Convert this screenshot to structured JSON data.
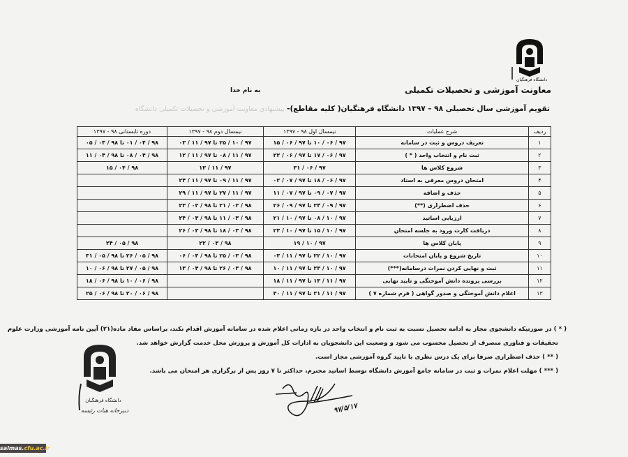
{
  "header": {
    "department": "معاونت آموزشی و تحصیلات تکمیلی",
    "bismillah": "به نام خدا",
    "title": "تقویم آموزشی سال تحصیلی ۹۸ – ۱۳۹۷ دانشگاه فرهنگیان( کلیه مقاطع)- ",
    "title_faint": "پیشنهادی معاونت آموزشی و تحصیلات تکمیلی دانشگاه",
    "logo_text": "دانشگاه فرهنگیان"
  },
  "table": {
    "columns": [
      "ردیف",
      "شرح عملیات",
      "نیمسال اول ۹۸ - ۱۳۹۷",
      "نیمسال دوم ۹۸ - ۱۳۹۷",
      "دوره تابستانی ۹۸ - ۱۳۹۷"
    ],
    "rows": [
      [
        "۱",
        "تعریف دروس و ثبت در سامانه",
        "۹۷ / ۰۶ / ۱۰ تا ۹۷ / ۰۶ / ۱۵",
        "۹۷ / ۱۰ / ۲۵ تا ۹۷ / ۱۱ / ۰۳",
        "۹۸ / ۰۴ / ۰۱ تا ۹۸ / ۰۴ / ۰۵"
      ],
      [
        "۲",
        "ثبت نام و انتخاب واحد ( * )",
        "۹۷ / ۰۶ / ۱۷ تا ۹۷ / ۰۶ / ۲۲",
        "۹۷ / ۱۱ / ۰۸ تا ۹۷ / ۱۱ / ۱۲",
        "۹۸ / ۰۴ / ۰۸ تا ۹۸ / ۰۴ / ۱۱"
      ],
      [
        "۳",
        "شروع کلاس ها",
        "۹۷ / ۰۶ / ۳۱",
        "۹۷ / ۱۱ / ۱۳",
        "۹۸ / ۰۴ / ۱۵"
      ],
      [
        "۴",
        "امتحان دروس معرفی به استاد",
        "۹۷ / ۰۶ / ۱۸ تا ۹۷ / ۰۷ / ۰۲",
        "۹۷ / ۱۱ / ۰۹ تا ۹۷ / ۱۱ / ۲۴",
        ""
      ],
      [
        "۵",
        "حذف و اضافه",
        "۹۷ / ۰۷ / ۰۹ تا ۹۷ / ۰۷ / ۱۱",
        "۹۷ / ۱۱ / ۲۷ تا ۹۷ / ۱۱ / ۲۹",
        ""
      ],
      [
        "۶",
        "حذف اضطراری (**)",
        "۹۷ / ۰۹ / ۲۴ تا ۹۷ / ۰۹ / ۲۶",
        "۹۸ / ۰۲ / ۲۱ تا ۹۸ / ۰۲ / ۲۳",
        ""
      ],
      [
        "۷",
        "ارزیابی اساتید",
        "۹۷ / ۱۰ / ۰۸ تا ۹۷ / ۱۰ / ۲۱",
        "۹۸ / ۰۳ / ۱۱ تا ۹۸ / ۰۳ / ۲۴",
        ""
      ],
      [
        "۸",
        "دریافت کارت ورود به جلسه امتحان",
        "۹۷ / ۱۰ / ۱۵ تا ۹۷ / ۱۰ / ۲۳",
        "۹۸ / ۰۳ / ۱۸ تا ۹۸ / ۰۳ / ۲۶",
        ""
      ],
      [
        "۹",
        "پایان کلاس ها",
        "۹۷ / ۱۰ / ۱۹",
        "۹۸ / ۰۳ / ۲۲",
        "۹۸ / ۰۵ / ۲۴"
      ],
      [
        "۱۰",
        "تاریخ شروع و پایان امتحانات",
        "۹۷ / ۱۰ / ۲۲ تا ۹۷ / ۱۱ / ۰۳",
        "۹۸ / ۰۳ / ۲۵ تا ۹۸ / ۰۴ / ۰۶",
        "۹۸ / ۰۵ / ۲۶ تا ۹۸ / ۰۵ / ۳۱"
      ],
      [
        "۱۱",
        "ثبت و نهایی کردن نمرات درسامانه(***)",
        "۹۷ / ۱۰ / ۲۳ تا ۹۷ / ۱۱ / ۱۰",
        "۹۸ / ۰۳ / ۲۶ تا ۹۸ / ۰۴ / ۱۳",
        "۹۸ / ۰۵ / ۲۷ تا ۹۸ / ۰۶ / ۱۰"
      ],
      [
        "۱۲",
        "بررسی پرونده دانش آموختگی و تایید نهایی",
        "۹۷ / ۱۱ / ۱۳ تا ۹۷ / ۱۱ / ۱۸",
        "",
        "۹۸ / ۰۶ / ۱۰ تا ۹۸ / ۰۶ / ۱۸"
      ],
      [
        "۱۳",
        "اعلام دانش آموختگی و صدور گواهی ( فرم شماره ۷ )",
        "۹۷ / ۱۱ / ۲۱ تا ۹۷ / ۱۱ / ۳۰",
        "",
        "۹۸ / ۰۶ / ۲۰ تا ۹۸ / ۰۶ / ۲۵"
      ]
    ]
  },
  "notes": [
    "( * ) در صورتیکه دانشجوی مجاز به ادامه تحصیل نسبت به ثبت نام و انتخاب واحد در بازه زمانی اعلام شده در سامانه آموزش اقدام نکند، براساس مفاد ماده(۲۱) آیین نامه آموزشی وزارت علوم",
    "تحقیقات و فناوری منصرف از تحصیل محسوب می شود و وضعیت این دانشجویان به ادارات کل آموزش و پرورش محل خدمت گزارش خواهد شد.",
    "( ** ) حذف اضطراری صرفا برای یک درس نظری با تایید گروه آموزشی مجاز است.",
    "( *** ) مهلت اعلام نمرات و ثبت در سامانه جامع آموزش دانشگاه توسط اساتید محترم، حداکثر تا ۷ روز پس از برگزاری هر امتحان می باشد."
  ],
  "stamp": {
    "line1": "دانشگاه فرهنگیان",
    "line2": "دبیرخانه هیات رئیسه"
  },
  "signature_date": "۹۷/۵/۱۷",
  "watermark": {
    "part1": "salmas.",
    "part2": "cfu.ac.ir"
  }
}
